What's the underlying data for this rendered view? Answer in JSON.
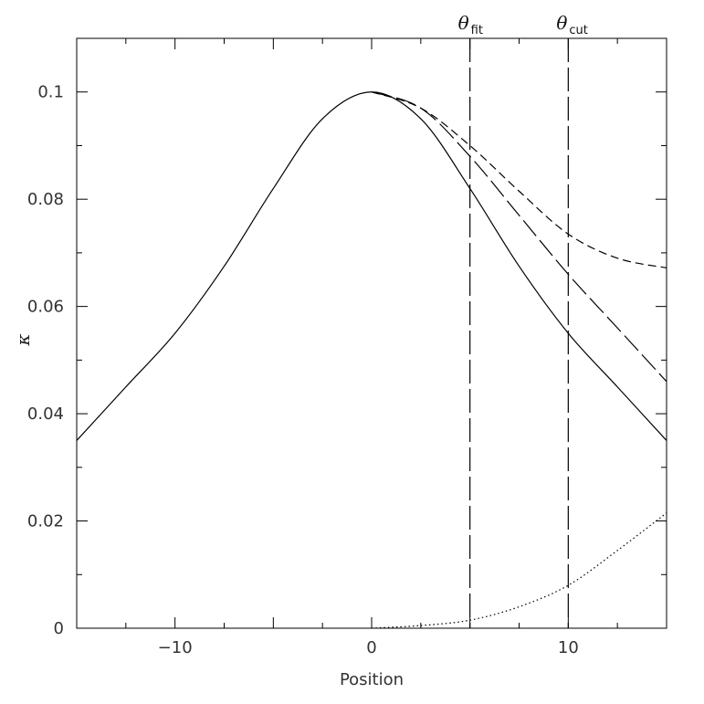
{
  "chart_data": {
    "type": "line",
    "title": "",
    "xlabel": "Position",
    "ylabel": "κ",
    "xlim": [
      -15,
      15
    ],
    "ylim": [
      0,
      0.11
    ],
    "x_ticks": [
      -10,
      0,
      10
    ],
    "x_tick_labels": [
      "−10",
      "0",
      "10"
    ],
    "y_ticks": [
      0,
      0.02,
      0.04,
      0.06,
      0.08,
      0.1
    ],
    "y_tick_labels": [
      "0",
      "0.02",
      "0.04",
      "0.06",
      "0.08",
      "0.1"
    ],
    "grid": false,
    "series": [
      {
        "style": "solid",
        "x": [
          -15,
          -12.5,
          -10,
          -7.5,
          -5,
          -2.5,
          0,
          2.5,
          5,
          7.5,
          10,
          12.5,
          15
        ],
        "y": [
          0.035,
          0.045,
          0.055,
          0.0675,
          0.082,
          0.095,
          0.1,
          0.095,
          0.082,
          0.0675,
          0.055,
          0.045,
          0.035
        ]
      },
      {
        "style": "long-dash",
        "x": [
          0,
          2.5,
          5,
          7.5,
          10,
          12.5,
          15
        ],
        "y": [
          0.1,
          0.097,
          0.088,
          0.077,
          0.066,
          0.056,
          0.046
        ]
      },
      {
        "style": "short-dash",
        "x": [
          0,
          2.5,
          5,
          7.5,
          10,
          12.5,
          15
        ],
        "y": [
          0.1,
          0.097,
          0.09,
          0.0815,
          0.0735,
          0.069,
          0.0672
        ]
      },
      {
        "style": "dotted",
        "x": [
          0,
          2.5,
          5,
          7.5,
          10,
          12.5,
          15
        ],
        "y": [
          0.0,
          0.0005,
          0.0015,
          0.004,
          0.008,
          0.0145,
          0.0215
        ]
      }
    ],
    "vlines": [
      {
        "x": 5,
        "label": "θ",
        "sub": "fit"
      },
      {
        "x": 10,
        "label": "θ",
        "sub": "cut"
      }
    ]
  }
}
